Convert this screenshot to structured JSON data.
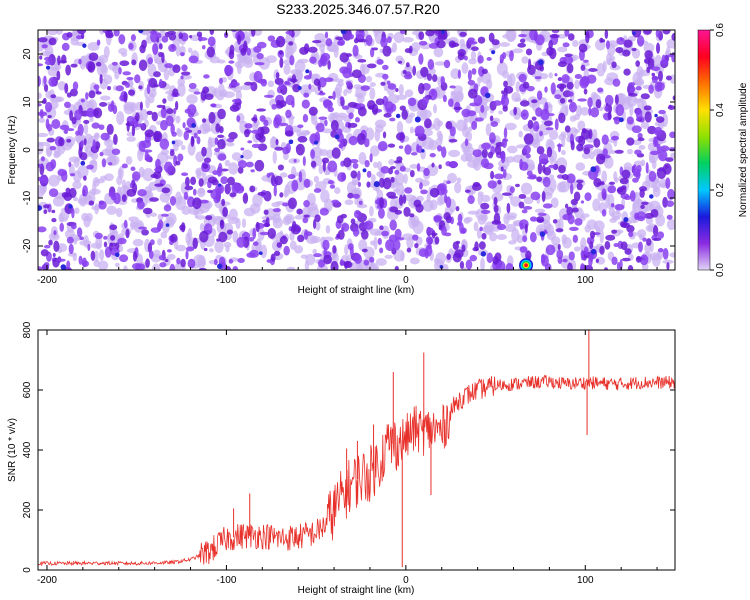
{
  "title": "S233.2025.346.07.57.R20",
  "colors": {
    "snr_line": "#e8302a",
    "axis": "#000000",
    "background": "#ffffff",
    "speckle_light": "#c9b2f2",
    "speckle_mid": "#8a3ff0",
    "speckle_dark": "#6a1bd6"
  },
  "chart_data": [
    {
      "type": "heatmap",
      "title": "S233.2025.346.07.57.R20",
      "xlabel": "Height of straight line (km)",
      "ylabel": "Frequency (Hz)",
      "xlim": [
        -205,
        150
      ],
      "ylim": [
        -25,
        25
      ],
      "x_ticks": [
        -200,
        -100,
        0,
        100
      ],
      "x_tick_labels": [
        "-200",
        "-100",
        "0",
        "100"
      ],
      "y_ticks": [
        -20,
        -10,
        0,
        10,
        20
      ],
      "y_tick_labels": [
        "-20",
        "-10",
        "0",
        "10",
        "20"
      ],
      "peak": {
        "x": 67,
        "y": -24
      },
      "colorbar": {
        "label": "Normalized spectral amplitude",
        "range": [
          0,
          0.6
        ],
        "ticks": [
          0.0,
          0.2,
          0.4,
          0.6
        ],
        "tick_labels": [
          "0.0",
          "0.2",
          "0.4",
          "0.6"
        ],
        "colormap": [
          "#e0d4f6",
          "#8a2be2",
          "#1a1adc",
          "#00c8ff",
          "#00d060",
          "#90e000",
          "#ffe000",
          "#ff7000",
          "#ff0020",
          "#ff1493"
        ]
      }
    },
    {
      "type": "line",
      "xlabel": "Height of straight line (km)",
      "ylabel": "SNR (10 * v/v)",
      "xlim": [
        -205,
        150
      ],
      "ylim": [
        0,
        800
      ],
      "x_ticks": [
        -200,
        -100,
        0,
        100
      ],
      "x_tick_labels": [
        "-200",
        "-100",
        "0",
        "100"
      ],
      "y_ticks": [
        0,
        200,
        400,
        600,
        800
      ],
      "y_tick_labels": [
        "0",
        "200",
        "400",
        "600",
        "800"
      ],
      "series": [
        {
          "name": "SNR",
          "x": [
            -205,
            -190,
            -170,
            -150,
            -130,
            -120,
            -110,
            -100,
            -90,
            -80,
            -70,
            -60,
            -50,
            -45,
            -40,
            -35,
            -30,
            -25,
            -20,
            -15,
            -10,
            -5,
            0,
            5,
            10,
            15,
            20,
            25,
            30,
            40,
            50,
            60,
            70,
            80,
            90,
            100,
            110,
            120,
            130,
            140,
            150
          ],
          "values": [
            22,
            22,
            23,
            22,
            25,
            35,
            60,
            105,
            115,
            115,
            105,
            110,
            125,
            150,
            200,
            250,
            290,
            310,
            320,
            360,
            420,
            420,
            440,
            470,
            460,
            470,
            460,
            530,
            570,
            600,
            615,
            620,
            625,
            628,
            620,
            625,
            622,
            620,
            625,
            625,
            625
          ],
          "spikes": [
            {
              "x": -96,
              "y": 205
            },
            {
              "x": -87,
              "y": 255
            },
            {
              "x": -40,
              "y": 265
            },
            {
              "x": -33,
              "y": 405
            },
            {
              "x": -27,
              "y": 430
            },
            {
              "x": -18,
              "y": 485
            },
            {
              "x": -7,
              "y": 660
            },
            {
              "x": -2,
              "y": 10
            },
            {
              "x": 10,
              "y": 725
            },
            {
              "x": 14,
              "y": 250
            },
            {
              "x": 102,
              "y": 800
            },
            {
              "x": 101,
              "y": 450
            }
          ]
        }
      ]
    }
  ]
}
